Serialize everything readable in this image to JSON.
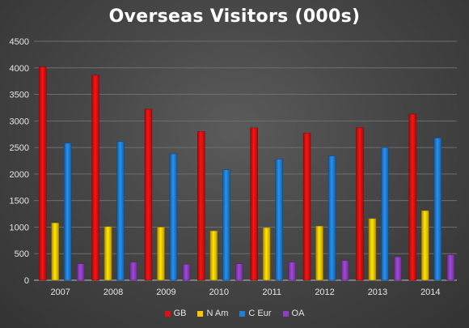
{
  "chart_data": {
    "type": "bar",
    "title": "Overseas Visitors (000s)",
    "categories": [
      "2007",
      "2008",
      "2009",
      "2010",
      "2011",
      "2012",
      "2013",
      "2014"
    ],
    "ylim": [
      0,
      4500
    ],
    "yticks": [
      "0",
      "500",
      "1000",
      "1500",
      "2000",
      "2500",
      "3000",
      "3500",
      "4000",
      "4500"
    ],
    "grid": true,
    "legend_position": "bottom",
    "series": [
      {
        "name": "GB",
        "color": "#e01010",
        "values": [
          4020,
          3860,
          3220,
          2800,
          2870,
          2770,
          2870,
          3130
        ]
      },
      {
        "name": "N Am",
        "color": "#ffc800",
        "values": [
          1080,
          1010,
          1000,
          930,
          990,
          1020,
          1160,
          1310
        ]
      },
      {
        "name": "C Eur",
        "color": "#1f7fd6",
        "values": [
          2580,
          2610,
          2380,
          2080,
          2280,
          2340,
          2500,
          2680
        ]
      },
      {
        "name": "OA",
        "color": "#8e3fbf",
        "values": [
          310,
          340,
          300,
          310,
          340,
          370,
          440,
          480
        ]
      }
    ]
  }
}
